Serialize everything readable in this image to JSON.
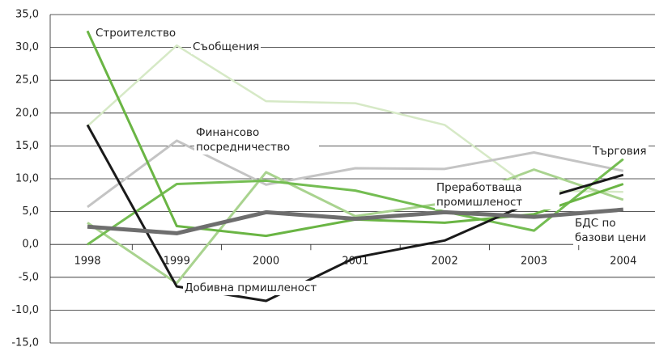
{
  "chart_data": {
    "type": "line",
    "categories": [
      "1998",
      "1999",
      "2000",
      "2001",
      "2002",
      "2003",
      "2004"
    ],
    "ylim": [
      -15,
      35
    ],
    "yticks": [
      {
        "value": -15,
        "label": "-15,0"
      },
      {
        "value": -10,
        "label": "-10,0"
      },
      {
        "value": -5,
        "label": "-5,0"
      },
      {
        "value": 0,
        "label": "0,0"
      },
      {
        "value": 5,
        "label": "5,0"
      },
      {
        "value": 10,
        "label": "10,0"
      },
      {
        "value": 15,
        "label": "15,0"
      },
      {
        "value": 20,
        "label": "20,0"
      },
      {
        "value": 25,
        "label": "25,0"
      },
      {
        "value": 30,
        "label": "30,0"
      },
      {
        "value": 35,
        "label": "35,0"
      }
    ],
    "grid": true,
    "series": [
      {
        "name": "Съобщения",
        "color": "#d6e9c6",
        "values": [
          18,
          30.3,
          21.8,
          21.5,
          18.2,
          8.2,
          8.0
        ]
      },
      {
        "name": "Финансово посредничество",
        "color": "#c4c4c4",
        "values": [
          5.7,
          15.8,
          9.1,
          11.6,
          11.5,
          14,
          11.2
        ]
      },
      {
        "name": "Преработваща промишленост",
        "color": "#a9d38f",
        "values": [
          3.3,
          -5.9,
          11,
          4.3,
          6.3,
          11.4,
          6.8
        ]
      },
      {
        "name": "Търговия",
        "color": "#74bd52",
        "values": [
          0,
          9.2,
          9.7,
          8.2,
          5,
          2.1,
          13
        ]
      },
      {
        "name": "Строителство",
        "color": "#6ab544",
        "values": [
          32.5,
          2.8,
          1.3,
          3.8,
          3.3,
          4.6,
          9.2
        ]
      },
      {
        "name": "Добивна прмишленост",
        "color": "#1a1a1a",
        "values": [
          18.2,
          -6.4,
          -8.6,
          -2,
          0.6,
          6.6,
          10.6
        ]
      },
      {
        "name": "БДС по базови цени",
        "color": "#6e6e6e",
        "values": [
          2.7,
          1.7,
          4.9,
          3.9,
          4.9,
          4.2,
          5.3
        ]
      }
    ]
  }
}
